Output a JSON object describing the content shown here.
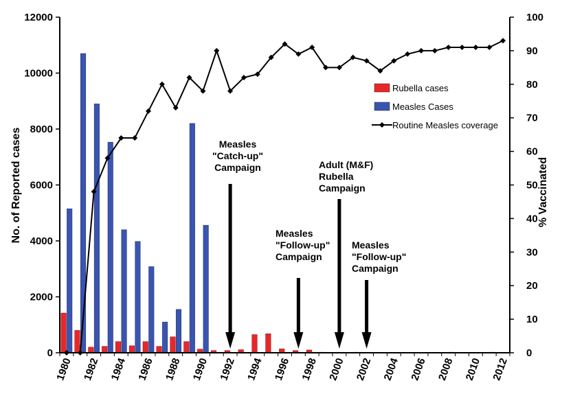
{
  "chart_data": {
    "type": "bar",
    "x": [
      1980,
      1981,
      1982,
      1983,
      1984,
      1985,
      1986,
      1987,
      1988,
      1989,
      1990,
      1991,
      1992,
      1993,
      1994,
      1995,
      1996,
      1997,
      1998,
      1999,
      2000,
      2001,
      2002,
      2003,
      2004,
      2005,
      2006,
      2007,
      2008,
      2009,
      2010,
      2011,
      2012
    ],
    "x_tick_labels": [
      "1980",
      "1982",
      "1984",
      "1986",
      "1988",
      "1990",
      "1992",
      "1994",
      "1996",
      "1998",
      "2000",
      "2002",
      "2004",
      "2006",
      "2008",
      "2010",
      "2012"
    ],
    "ylabel": "No. of Reported cases",
    "ylim": [
      0,
      12000
    ],
    "y_tick_labels": [
      "0",
      "2000",
      "4000",
      "6000",
      "8000",
      "10000",
      "12000"
    ],
    "y2label": "% Vaccinated",
    "y2lim": [
      0,
      100
    ],
    "y2_tick_labels": [
      "0",
      "10",
      "20",
      "30",
      "40",
      "50",
      "60",
      "70",
      "80",
      "90",
      "100"
    ],
    "legend_position": "upper-right",
    "series": [
      {
        "name": "Rubella cases",
        "kind": "bar",
        "color": "#e8272a",
        "values": [
          1420,
          800,
          200,
          230,
          400,
          250,
          400,
          230,
          570,
          400,
          130,
          80,
          80,
          110,
          650,
          680,
          140,
          80,
          100,
          20,
          10,
          10,
          5,
          5,
          5,
          5,
          5,
          5,
          10,
          5,
          5,
          5,
          5
        ]
      },
      {
        "name": "Measles Cases",
        "kind": "bar",
        "color": "#3a55b0",
        "values": [
          5150,
          10700,
          8900,
          7530,
          4400,
          3980,
          3080,
          1100,
          1550,
          8200,
          4560,
          20,
          10,
          0,
          0,
          0,
          0,
          0,
          20,
          10,
          0,
          20,
          0,
          0,
          0,
          0,
          0,
          0,
          20,
          0,
          0,
          20,
          0
        ]
      },
      {
        "name": "Routine Measles coverage",
        "kind": "line",
        "axis": "y2",
        "color": "#000000",
        "values": [
          0,
          0,
          48,
          58,
          64,
          64,
          72,
          80,
          73,
          82,
          78,
          90,
          78,
          82,
          83,
          88,
          92,
          89,
          91,
          85,
          85,
          88,
          87,
          84,
          87,
          89,
          90,
          90,
          91,
          91,
          91,
          91,
          93
        ]
      }
    ],
    "annotations": [
      {
        "lines": [
          "Measles",
          "\"Catch-up\"",
          "Campaign"
        ],
        "year": 1992
      },
      {
        "lines": [
          "Measles",
          "\"Follow-up\"",
          "Campaign"
        ],
        "year": 1997
      },
      {
        "lines": [
          "Adult (M&F)",
          "Rubella",
          "Campaign"
        ],
        "year": 2000
      },
      {
        "lines": [
          "Measles",
          "\"Follow-up\"",
          "Campaign"
        ],
        "year": 2002
      }
    ]
  }
}
